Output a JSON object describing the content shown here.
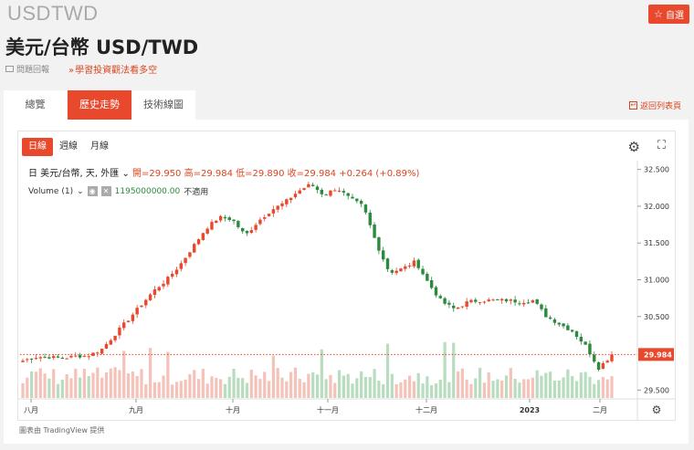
{
  "header": {
    "ticker": "USDTWD",
    "watch_label": "自選",
    "title": "美元/台幣 USD/TWD",
    "report": "問題回報",
    "learn": "學習投資觀法看多空"
  },
  "tabs": [
    {
      "label": "總覽"
    },
    {
      "label": "歷史走勢"
    },
    {
      "label": "技術線圖"
    }
  ],
  "back_link": "返回列表頁",
  "chart": {
    "intervals": [
      "日線",
      "週線",
      "月線"
    ],
    "legend_symbol": "日 美元/台幣, 天, 外匯",
    "legend_ohlc": "開=29.950 高=29.984 低=29.890 收=29.984 +0.264 (+0.89%)",
    "volume_label": "Volume (1)",
    "volume_value": "1195000000.00",
    "volume_na": "不適用",
    "last_price_label": "29.984",
    "credit": "圖表由 TradingView 提供"
  },
  "chart_data": {
    "type": "candlestick",
    "x_labels": [
      "八月",
      "九月",
      "十月",
      "十一月",
      "十二月",
      "2023",
      "二月"
    ],
    "y_ticks": [
      "32.500",
      "32.000",
      "31.500",
      "31.000",
      "30.500",
      "29.500"
    ],
    "ylim": [
      29.5,
      32.5
    ],
    "last_price": 29.984,
    "approx_close_path": [
      29.9,
      29.95,
      29.95,
      29.93,
      29.96,
      29.97,
      30.05,
      30.25,
      30.45,
      30.65,
      30.85,
      31.0,
      31.2,
      31.45,
      31.7,
      31.85,
      31.82,
      31.6,
      31.8,
      31.95,
      32.05,
      32.2,
      32.3,
      32.15,
      32.25,
      32.1,
      32.0,
      31.5,
      31.1,
      31.15,
      31.25,
      30.95,
      30.7,
      30.6,
      30.7,
      30.72,
      30.72,
      30.72,
      30.7,
      30.72,
      30.5,
      30.4,
      30.3,
      30.1,
      29.8,
      29.98
    ],
    "colors": {
      "up": "#e8482c",
      "down": "#2b8a3e",
      "up_vol": "#f4c2b8",
      "down_vol": "#b8dcbf"
    }
  }
}
